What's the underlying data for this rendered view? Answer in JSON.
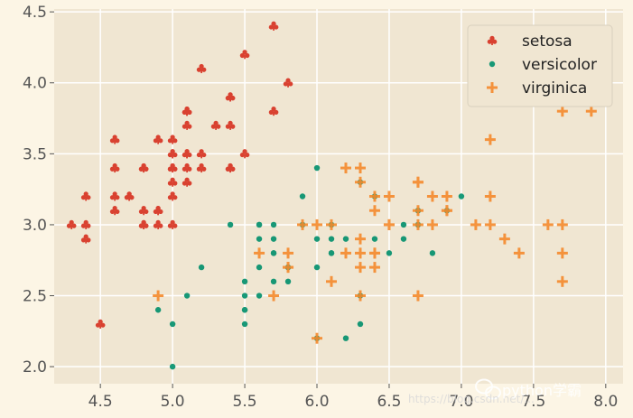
{
  "chart_data": {
    "type": "scatter",
    "title": "",
    "xlabel": "",
    "ylabel": "",
    "xlim": [
      4.18,
      8.12
    ],
    "ylim": [
      1.88,
      4.52
    ],
    "xticks": [
      4.5,
      5.0,
      5.5,
      6.0,
      6.5,
      7.0,
      7.5,
      8.0
    ],
    "xtick_labels": [
      "4.5",
      "5.0",
      "5.5",
      "6.0",
      "6.5",
      "7.0",
      "7.5",
      "8.0"
    ],
    "yticks": [
      2.0,
      2.5,
      3.0,
      3.5,
      4.0,
      4.5
    ],
    "ytick_labels": [
      "2.0",
      "2.5",
      "3.0",
      "3.5",
      "4.0",
      "4.5"
    ],
    "grid": true,
    "legend_position": "top-right",
    "series": [
      {
        "name": "setosa",
        "marker": "club",
        "color": "#d7301f",
        "points": [
          [
            5.1,
            3.5
          ],
          [
            4.9,
            3.0
          ],
          [
            4.7,
            3.2
          ],
          [
            4.6,
            3.1
          ],
          [
            5.0,
            3.6
          ],
          [
            5.4,
            3.9
          ],
          [
            4.6,
            3.4
          ],
          [
            5.0,
            3.4
          ],
          [
            4.4,
            2.9
          ],
          [
            4.9,
            3.1
          ],
          [
            5.4,
            3.7
          ],
          [
            4.8,
            3.4
          ],
          [
            4.8,
            3.0
          ],
          [
            4.3,
            3.0
          ],
          [
            5.8,
            4.0
          ],
          [
            5.7,
            4.4
          ],
          [
            5.4,
            3.9
          ],
          [
            5.1,
            3.5
          ],
          [
            5.7,
            3.8
          ],
          [
            5.1,
            3.8
          ],
          [
            5.4,
            3.4
          ],
          [
            5.1,
            3.7
          ],
          [
            4.6,
            3.6
          ],
          [
            5.1,
            3.3
          ],
          [
            4.8,
            3.4
          ],
          [
            5.0,
            3.0
          ],
          [
            5.0,
            3.4
          ],
          [
            5.2,
            3.5
          ],
          [
            5.2,
            3.4
          ],
          [
            4.7,
            3.2
          ],
          [
            4.8,
            3.1
          ],
          [
            5.4,
            3.4
          ],
          [
            5.2,
            4.1
          ],
          [
            5.5,
            4.2
          ],
          [
            4.9,
            3.1
          ],
          [
            5.0,
            3.2
          ],
          [
            5.5,
            3.5
          ],
          [
            4.9,
            3.6
          ],
          [
            4.4,
            3.0
          ],
          [
            5.1,
            3.4
          ],
          [
            5.0,
            3.5
          ],
          [
            4.5,
            2.3
          ],
          [
            4.4,
            3.2
          ],
          [
            5.0,
            3.5
          ],
          [
            5.1,
            3.8
          ],
          [
            4.8,
            3.0
          ],
          [
            5.1,
            3.8
          ],
          [
            4.6,
            3.2
          ],
          [
            5.3,
            3.7
          ],
          [
            5.0,
            3.3
          ]
        ]
      },
      {
        "name": "versicolor",
        "marker": "circle",
        "color": "#008f6b",
        "points": [
          [
            7.0,
            3.2
          ],
          [
            6.4,
            3.2
          ],
          [
            6.9,
            3.1
          ],
          [
            5.5,
            2.3
          ],
          [
            6.5,
            2.8
          ],
          [
            5.7,
            2.8
          ],
          [
            6.3,
            3.3
          ],
          [
            4.9,
            2.4
          ],
          [
            6.6,
            2.9
          ],
          [
            5.2,
            2.7
          ],
          [
            5.0,
            2.0
          ],
          [
            5.9,
            3.0
          ],
          [
            6.0,
            2.2
          ],
          [
            6.1,
            2.9
          ],
          [
            5.6,
            2.9
          ],
          [
            6.7,
            3.1
          ],
          [
            5.6,
            3.0
          ],
          [
            5.8,
            2.7
          ],
          [
            6.2,
            2.2
          ],
          [
            5.6,
            2.5
          ],
          [
            5.9,
            3.2
          ],
          [
            6.1,
            2.8
          ],
          [
            6.3,
            2.5
          ],
          [
            6.1,
            2.8
          ],
          [
            6.4,
            2.9
          ],
          [
            6.6,
            3.0
          ],
          [
            6.8,
            2.8
          ],
          [
            6.7,
            3.0
          ],
          [
            6.0,
            2.9
          ],
          [
            5.7,
            2.6
          ],
          [
            5.5,
            2.4
          ],
          [
            5.5,
            2.4
          ],
          [
            5.8,
            2.7
          ],
          [
            6.0,
            2.7
          ],
          [
            5.4,
            3.0
          ],
          [
            6.0,
            3.4
          ],
          [
            6.7,
            3.1
          ],
          [
            6.3,
            2.3
          ],
          [
            5.6,
            3.0
          ],
          [
            5.5,
            2.5
          ],
          [
            5.5,
            2.6
          ],
          [
            6.1,
            3.0
          ],
          [
            5.8,
            2.6
          ],
          [
            5.0,
            2.3
          ],
          [
            5.6,
            2.7
          ],
          [
            5.7,
            3.0
          ],
          [
            5.7,
            2.9
          ],
          [
            6.2,
            2.9
          ],
          [
            5.1,
            2.5
          ],
          [
            5.7,
            2.8
          ]
        ]
      },
      {
        "name": "virginica",
        "marker": "plus",
        "color": "#f58a2c",
        "points": [
          [
            6.3,
            3.3
          ],
          [
            5.8,
            2.7
          ],
          [
            7.1,
            3.0
          ],
          [
            6.3,
            2.9
          ],
          [
            6.5,
            3.0
          ],
          [
            7.6,
            3.0
          ],
          [
            4.9,
            2.5
          ],
          [
            7.3,
            2.9
          ],
          [
            6.7,
            2.5
          ],
          [
            7.2,
            3.6
          ],
          [
            6.5,
            3.2
          ],
          [
            6.4,
            2.7
          ],
          [
            6.8,
            3.0
          ],
          [
            5.7,
            2.5
          ],
          [
            5.8,
            2.8
          ],
          [
            6.4,
            3.2
          ],
          [
            6.5,
            3.0
          ],
          [
            7.7,
            3.8
          ],
          [
            7.7,
            2.6
          ],
          [
            6.0,
            2.2
          ],
          [
            6.9,
            3.2
          ],
          [
            5.6,
            2.8
          ],
          [
            7.7,
            2.8
          ],
          [
            6.3,
            2.7
          ],
          [
            6.7,
            3.3
          ],
          [
            7.2,
            3.2
          ],
          [
            6.2,
            2.8
          ],
          [
            6.1,
            3.0
          ],
          [
            6.4,
            2.8
          ],
          [
            7.2,
            3.0
          ],
          [
            7.4,
            2.8
          ],
          [
            7.9,
            3.8
          ],
          [
            6.4,
            2.8
          ],
          [
            6.3,
            2.8
          ],
          [
            6.1,
            2.6
          ],
          [
            7.7,
            3.0
          ],
          [
            6.3,
            3.4
          ],
          [
            6.4,
            3.1
          ],
          [
            6.0,
            3.0
          ],
          [
            6.9,
            3.1
          ],
          [
            6.7,
            3.1
          ],
          [
            6.9,
            3.1
          ],
          [
            5.8,
            2.7
          ],
          [
            6.8,
            3.2
          ],
          [
            6.7,
            3.3
          ],
          [
            6.7,
            3.0
          ],
          [
            6.3,
            2.5
          ],
          [
            6.5,
            3.0
          ],
          [
            6.2,
            3.4
          ],
          [
            5.9,
            3.0
          ]
        ]
      }
    ]
  },
  "watermark": {
    "text": "python学霸",
    "faint_text": "https://blog.csdn.net/..."
  }
}
